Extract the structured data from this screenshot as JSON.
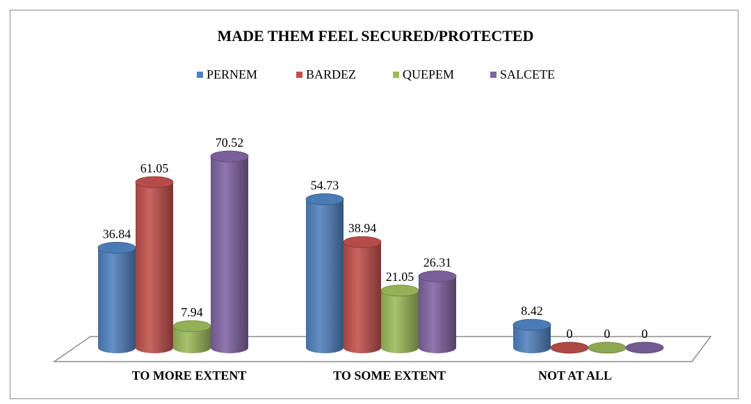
{
  "chart_data": {
    "type": "bar",
    "title": "MADE THEM FEEL SECURED/PROTECTED",
    "categories": [
      "TO MORE EXTENT",
      "TO SOME EXTENT",
      "NOT AT ALL"
    ],
    "series": [
      {
        "name": "PERNEM",
        "values": [
          36.84,
          54.73,
          8.42
        ],
        "color": "#4F81BD"
      },
      {
        "name": "BARDEZ",
        "values": [
          61.05,
          38.94,
          0
        ],
        "color": "#C0504D"
      },
      {
        "name": "QUEPEM",
        "values": [
          7.94,
          21.05,
          0
        ],
        "color": "#9BBB59"
      },
      {
        "name": "SALCETE",
        "values": [
          70.52,
          26.31,
          0
        ],
        "color": "#8064A2"
      }
    ],
    "value_labels": [
      [
        "36.84",
        "61.05",
        "7.94",
        "70.52"
      ],
      [
        "54.73",
        "38.94",
        "21.05",
        "26.31"
      ],
      [
        "8.42",
        "0",
        "0",
        "0"
      ]
    ],
    "legend_position": "top",
    "style": "3d-cylinder",
    "grid": false
  }
}
